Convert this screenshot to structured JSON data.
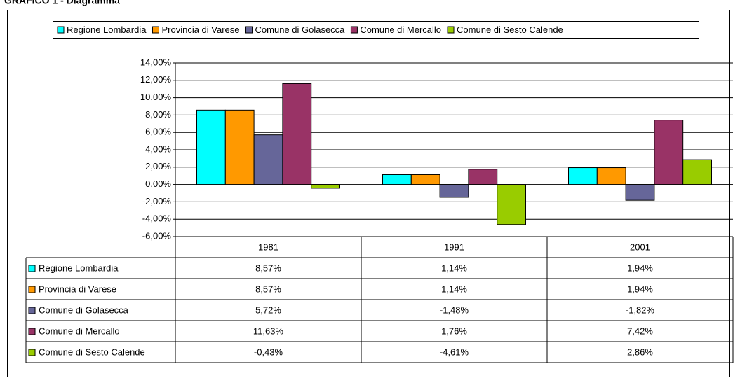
{
  "heading": "GRAFICO 1 - Diagramma",
  "chart_data": {
    "type": "bar",
    "categories": [
      "1981",
      "1991",
      "2001"
    ],
    "series": [
      {
        "name": "Regione Lombardia",
        "color": "#00ffff",
        "values": [
          8.57,
          1.14,
          1.94
        ],
        "value_labels": [
          "8,57%",
          "1,14%",
          "1,94%"
        ]
      },
      {
        "name": "Provincia di Varese",
        "color": "#ff9900",
        "values": [
          8.57,
          1.14,
          1.94
        ],
        "value_labels": [
          "8,57%",
          "1,14%",
          "1,94%"
        ]
      },
      {
        "name": "Comune di Golasecca",
        "color": "#666699",
        "values": [
          5.72,
          -1.48,
          -1.82
        ],
        "value_labels": [
          "5,72%",
          "-1,48%",
          "-1,82%"
        ]
      },
      {
        "name": "Comune di Mercallo",
        "color": "#993366",
        "values": [
          11.63,
          1.76,
          7.42
        ],
        "value_labels": [
          "11,63%",
          "1,76%",
          "7,42%"
        ]
      },
      {
        "name": "Comune di Sesto Calende",
        "color": "#99cc00",
        "values": [
          -0.43,
          -4.61,
          2.86
        ],
        "value_labels": [
          "-0,43%",
          "-4,61%",
          "2,86%"
        ]
      }
    ],
    "ylim": [
      -6,
      14
    ],
    "yticks": [
      {
        "value": -6,
        "label": "-6,00%"
      },
      {
        "value": -4,
        "label": "-4,00%"
      },
      {
        "value": -2,
        "label": "-2,00%"
      },
      {
        "value": 0,
        "label": "0,00%"
      },
      {
        "value": 2,
        "label": "2,00%"
      },
      {
        "value": 4,
        "label": "4,00%"
      },
      {
        "value": 6,
        "label": "6,00%"
      },
      {
        "value": 8,
        "label": "8,00%"
      },
      {
        "value": 10,
        "label": "10,00%"
      },
      {
        "value": 12,
        "label": "12,00%"
      },
      {
        "value": 14,
        "label": "14,00%"
      }
    ],
    "grid": true,
    "legend": "top"
  }
}
